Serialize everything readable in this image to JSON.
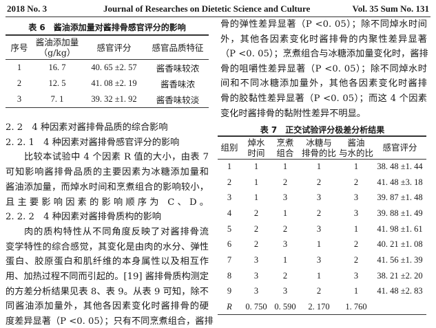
{
  "header": {
    "left": "2018 No. 3",
    "center": "Journal of Researches on Dietetic Science and Culture",
    "right": "Vol. 35 Sum No. 131"
  },
  "table6": {
    "caption": "表 6　酱油添加量对酱排骨感官评分的影响",
    "headers": [
      "序号",
      "酱油添加量\n（g/kg）",
      "感官评分",
      "感官品质特征"
    ],
    "rows": [
      [
        "1",
        "16. 7",
        "40. 65 ±2. 57",
        "酱香味较浓"
      ],
      [
        "2",
        "12. 5",
        "41. 08 ±2. 19",
        "酱香味浓"
      ],
      [
        "3",
        "7. 1",
        "39. 32 ±1. 92",
        "酱香味较淡"
      ]
    ]
  },
  "left_lines": [
    "2. 2　4 种因素对酱排骨品质的综合影响",
    "2. 2. 1　4 种因素对酱排骨感官评分的影响",
    "比较本试验中 4 个因素 R 值的大小，由表 7",
    "可知影响酱排骨品质的主要因素为冰糖添加量和",
    "酱油添加量，而焯水时间和烹煮组合的影响较小，",
    "且主要影响因素的影响顺序为 C、D。",
    "2. 2. 2　4 种因素对酱排骨质构的影响",
    "肉的质构特性从不同角度反映了对酱排骨流",
    "变学特性的综合感觉，其变化是由肉的水分、弹性",
    "蛋白、胶原蛋白和肌纤维的本身属性以及相互作",
    "用、加热过程不同而引起的。[19] 酱排骨质构测定",
    "的方差分析结果见表 8、表 9。从表 9 可知，除不",
    "同酱油添加量外，其他各因素变化时酱排骨的硬",
    "度差异显著（P <0. 05）；只有不同烹煮组合，酱排"
  ],
  "right_lines": [
    "骨的弹性差异显著（P <0. 05）；除不同焯水时间",
    "外，其他各因素变化时酱排骨的内聚性差异显著",
    "（P <0. 05）；烹煮组合与冰糖添加量变化时，酱排",
    "骨的咀嚼性差异显著（P <0. 05）；除不同焯水时",
    "间和不同冰糖添加量外，其他各因素变化时酱排",
    "骨的胶黏性差异显著（P <0. 05）；而这 4 个因素",
    "变化时酱排骨的黏附性差异不明显。"
  ],
  "table7": {
    "caption": "表 7　正交试验评分极差分析结果",
    "headers": [
      "组别",
      "焯水\n时间",
      "烹煮\n组合",
      "冰糖与\n排骨的比",
      "酱油\n与水的比",
      "感官评分"
    ],
    "rows": [
      [
        "1",
        "1",
        "1",
        "1",
        "1",
        "38. 48 ±1. 44"
      ],
      [
        "2",
        "1",
        "2",
        "2",
        "2",
        "41. 48 ±3. 18"
      ],
      [
        "3",
        "1",
        "3",
        "3",
        "3",
        "39. 87 ±1. 48"
      ],
      [
        "4",
        "2",
        "1",
        "2",
        "3",
        "39. 88 ±1. 49"
      ],
      [
        "5",
        "2",
        "2",
        "3",
        "1",
        "41. 98 ±1. 61"
      ],
      [
        "6",
        "2",
        "3",
        "1",
        "2",
        "40. 21 ±1. 08"
      ],
      [
        "7",
        "3",
        "1",
        "3",
        "2",
        "41. 56 ±1. 39"
      ],
      [
        "8",
        "3",
        "2",
        "1",
        "3",
        "38. 21 ±2. 20"
      ],
      [
        "9",
        "3",
        "3",
        "2",
        "1",
        "41. 48 ±2. 83"
      ],
      [
        "R",
        "0. 750",
        "0. 590",
        "2. 170",
        "1. 760",
        ""
      ]
    ]
  }
}
